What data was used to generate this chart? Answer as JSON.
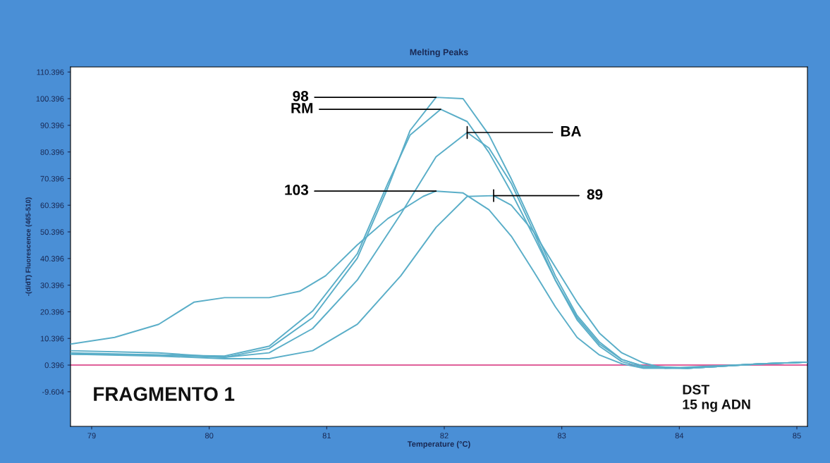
{
  "chart_data": {
    "type": "line",
    "title": "Melting Peaks",
    "xlabel": "Temperature (°C)",
    "ylabel": "-(d/dT) Fluorescence (465-510)",
    "xlim": [
      78.82,
      85.09
    ],
    "ylim": [
      -22.6,
      112.3
    ],
    "xticks": [
      79,
      80,
      81,
      82,
      83,
      84,
      85
    ],
    "yticks": [
      -9.604,
      0.396,
      10.396,
      20.396,
      30.396,
      40.396,
      50.396,
      60.396,
      70.396,
      80.396,
      90.396,
      100.396,
      110.396
    ],
    "grid": false,
    "legend": false,
    "marker": "none",
    "line_style": "solid",
    "ref_lines": [
      {
        "axis": "y",
        "value": 0.396,
        "color": "#e0609a"
      }
    ],
    "annotations": [
      {
        "text": "98",
        "x": 81.93,
        "y": 100.9
      },
      {
        "text": "RM",
        "x": 81.97,
        "y": 96.4
      },
      {
        "text": "BA",
        "x": 82.195,
        "y": 87.7
      },
      {
        "text": "103",
        "x": 81.93,
        "y": 65.7
      },
      {
        "text": "89",
        "x": 82.42,
        "y": 64.0
      },
      "FRAGMENTO 1",
      "DST\n15 ng ADN"
    ],
    "series": [
      {
        "color": "#5aaec8",
        "x": [
          78.82,
          79.57,
          80.13,
          80.51,
          80.88,
          81.26,
          81.52,
          81.71,
          81.93,
          82.16,
          82.38,
          82.57,
          82.76,
          82.945,
          83.13,
          83.32,
          83.51,
          83.695,
          84.07,
          84.7,
          85.09
        ],
        "values": [
          5.8,
          5.0,
          3.3,
          6.6,
          18.2,
          40.5,
          67.0,
          88.5,
          100.9,
          100.4,
          86.8,
          70.3,
          52.1,
          33.9,
          19.0,
          9.1,
          2.5,
          0.0,
          -0.8,
          0.9,
          1.5
        ]
      },
      {
        "color": "#5aaec8",
        "x": [
          78.82,
          79.57,
          80.13,
          80.51,
          80.88,
          81.26,
          81.52,
          81.71,
          81.97,
          82.195,
          82.38,
          82.57,
          82.76,
          82.945,
          83.13,
          83.32,
          83.51,
          83.695,
          84.07,
          84.7,
          85.09
        ],
        "values": [
          5.0,
          4.2,
          3.8,
          7.5,
          20.7,
          42.2,
          68.6,
          86.8,
          96.4,
          91.8,
          80.2,
          65.3,
          48.8,
          32.3,
          17.4,
          7.5,
          1.7,
          -0.5,
          -0.8,
          0.9,
          1.5
        ]
      },
      {
        "color": "#5aaec8",
        "x": [
          78.82,
          79.57,
          80.13,
          80.51,
          80.88,
          81.26,
          81.63,
          81.93,
          82.195,
          82.38,
          82.57,
          82.76,
          82.945,
          83.13,
          83.32,
          83.51,
          83.695,
          84.07,
          84.7,
          85.09
        ],
        "values": [
          4.5,
          4.2,
          3.3,
          5.0,
          14.1,
          32.3,
          57.1,
          78.6,
          87.7,
          81.9,
          68.6,
          50.5,
          32.3,
          18.2,
          8.3,
          2.5,
          0.0,
          -0.8,
          0.9,
          1.5
        ]
      },
      {
        "color": "#5aaec8",
        "x": [
          78.82,
          79.195,
          79.57,
          79.87,
          80.13,
          80.51,
          80.77,
          80.99,
          81.26,
          81.52,
          81.82,
          81.93,
          82.16,
          82.38,
          82.57,
          82.76,
          82.945,
          83.13,
          83.32,
          83.51,
          83.695,
          84.07,
          84.7,
          85.09
        ],
        "values": [
          8.3,
          10.8,
          15.7,
          24.0,
          25.7,
          25.7,
          28.1,
          33.9,
          45.5,
          55.4,
          63.7,
          65.7,
          65.0,
          58.7,
          48.8,
          35.6,
          22.3,
          10.8,
          4.2,
          0.9,
          -0.8,
          -0.8,
          0.9,
          1.5
        ]
      },
      {
        "color": "#5aaec8",
        "x": [
          78.82,
          79.57,
          80.13,
          80.51,
          80.88,
          81.26,
          81.63,
          81.93,
          82.195,
          82.42,
          82.57,
          82.76,
          82.945,
          83.13,
          83.32,
          83.51,
          83.695,
          83.88,
          84.7,
          85.09
        ],
        "values": [
          4.5,
          3.8,
          2.8,
          2.8,
          5.8,
          15.7,
          33.9,
          52.1,
          63.7,
          64.0,
          60.4,
          50.5,
          37.2,
          24.0,
          12.4,
          5.0,
          1.2,
          -0.8,
          0.9,
          1.5
        ]
      }
    ]
  }
}
